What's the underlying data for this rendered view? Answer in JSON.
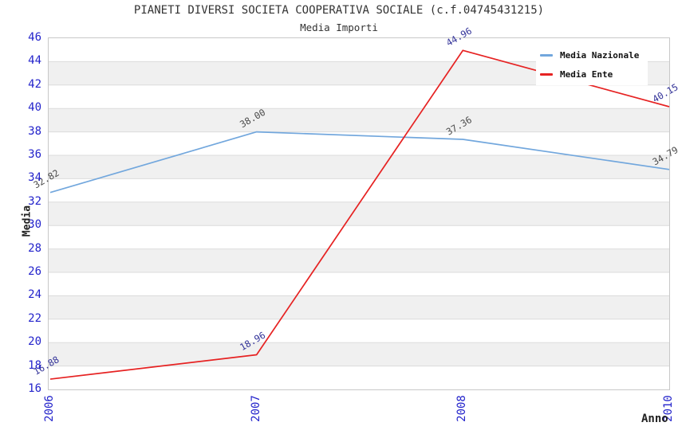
{
  "header": {
    "title": "PIANETI DIVERSI SOCIETA COOPERATIVA SOCIALE (c.f.04745431215)",
    "subtitle": "Media Importi"
  },
  "chart_data": {
    "type": "line",
    "title": "PIANETI DIVERSI SOCIETA COOPERATIVA SOCIALE (c.f.04745431215)",
    "subtitle": "Media Importi",
    "categories": [
      "2006",
      "2007",
      "2008",
      "2010"
    ],
    "series": [
      {
        "name": "Media Nazionale",
        "color": "#72a7dd",
        "label_color": "#4a4a4a",
        "values": [
          32.82,
          38.0,
          37.36,
          34.79
        ],
        "point_labels": [
          "32.82",
          "38.00",
          "37.36",
          "34.79"
        ]
      },
      {
        "name": "Media Ente",
        "color": "#e62222",
        "label_color": "#333399",
        "values": [
          16.88,
          18.96,
          44.96,
          40.15
        ],
        "point_labels": [
          "16.88",
          "18.96",
          "44.96",
          "40.15"
        ]
      }
    ],
    "xlabel": "Anno",
    "ylabel": "Media",
    "ylim": [
      16,
      46
    ],
    "ytick_step": 2,
    "yticks": [
      46,
      44,
      42,
      40,
      38,
      36,
      34,
      32,
      30,
      28,
      26,
      24,
      22,
      20,
      18,
      16
    ],
    "grid": true,
    "legend_position": "top-right",
    "colors": {
      "tick_label": "#2323cb",
      "band_alt": "#f0f0f0",
      "band_main": "#ffffff",
      "gridline": "#dcdcdc",
      "plot_border": "#c8c8c8",
      "title_text": "#333333"
    }
  }
}
